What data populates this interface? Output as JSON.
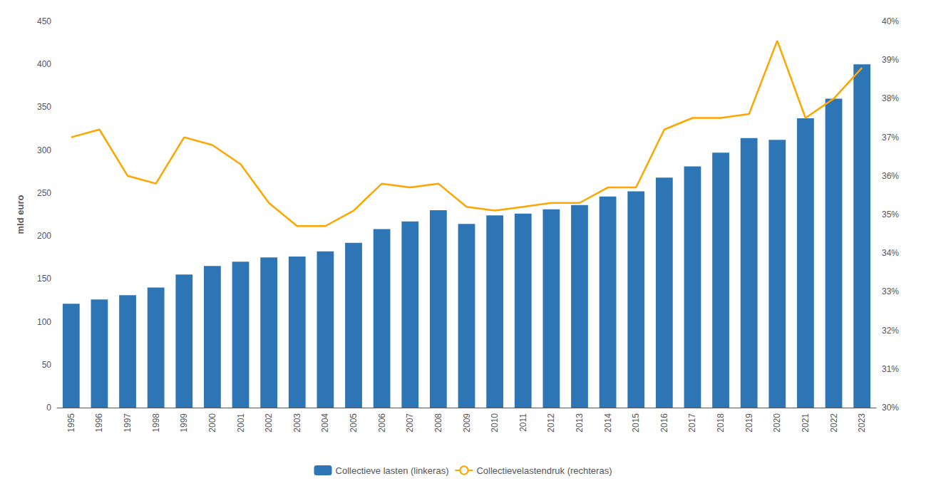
{
  "chart_data": {
    "type": "bar",
    "categories": [
      "1995",
      "1996",
      "1997",
      "1998",
      "1999",
      "2000",
      "2001",
      "2002",
      "2003",
      "2004",
      "2005",
      "2006",
      "2007",
      "2008",
      "2009",
      "2010",
      "2011",
      "2012",
      "2013",
      "2014",
      "2015",
      "2016",
      "2017",
      "2018",
      "2019",
      "2020",
      "2021",
      "2022",
      "2023"
    ],
    "ylabel": "mld euro",
    "series": [
      {
        "name": "Collectieve lasten (linkeras)",
        "type": "bar",
        "color": "#2E75B6",
        "values": [
          121,
          126,
          131,
          140,
          155,
          165,
          170,
          175,
          176,
          182,
          192,
          208,
          217,
          230,
          214,
          224,
          226,
          231,
          236,
          246,
          252,
          268,
          281,
          297,
          314,
          312,
          337,
          360,
          400
        ]
      },
      {
        "name": "Collectievelastendruk (rechteras)",
        "type": "line",
        "axis": "y2",
        "color": "#FFA500",
        "values": [
          37.0,
          37.2,
          36.0,
          35.8,
          37.0,
          36.8,
          36.3,
          35.3,
          34.7,
          34.7,
          35.1,
          35.8,
          35.7,
          35.8,
          35.2,
          35.1,
          35.2,
          35.3,
          35.3,
          35.7,
          35.7,
          37.2,
          37.5,
          37.5,
          37.6,
          39.5,
          37.5,
          38.0,
          38.8
        ]
      }
    ],
    "ylim": [
      0,
      450
    ],
    "yticks": [
      0,
      50,
      100,
      150,
      200,
      250,
      300,
      350,
      400,
      450
    ],
    "y2lim": [
      30,
      40
    ],
    "y2ticks": [
      {
        "value": 30,
        "label": "30%"
      },
      {
        "value": 31,
        "label": "31%"
      },
      {
        "value": 32,
        "label": "32%"
      },
      {
        "value": 33,
        "label": "33%"
      },
      {
        "value": 34,
        "label": "34%"
      },
      {
        "value": 35,
        "label": "35%"
      },
      {
        "value": 36,
        "label": "36%"
      },
      {
        "value": 37,
        "label": "37%"
      },
      {
        "value": 38,
        "label": "38%"
      },
      {
        "value": 39,
        "label": "39%"
      },
      {
        "value": 40,
        "label": "40%"
      }
    ],
    "grid": false,
    "legend": "bottom"
  }
}
